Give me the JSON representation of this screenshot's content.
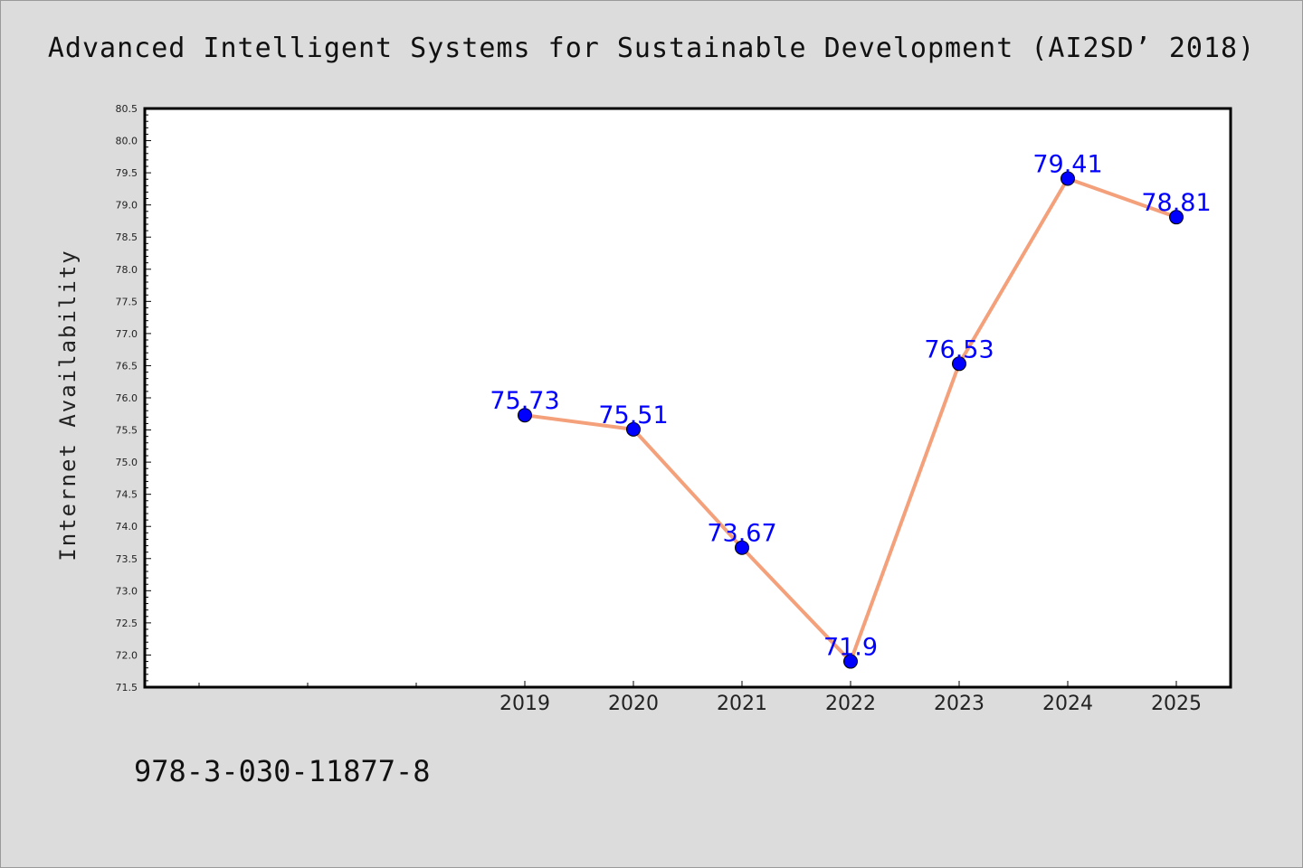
{
  "title": "Advanced Intelligent Systems for Sustainable Development (AI2SD’ 2018)",
  "footer_text": "978-3-030-11877-8",
  "colors": {
    "background": "#dcdcdc",
    "plot_background": "#ffffff",
    "line": "#f4a07a",
    "marker": "#0000ff",
    "data_label": "#0000ff"
  },
  "chart_data": {
    "type": "line",
    "title": "Advanced Intelligent Systems for Sustainable Development (AI2SD’ 2018)",
    "xlabel": "",
    "ylabel": "Internet Availability",
    "x": [
      "2019",
      "2020",
      "2021",
      "2022",
      "2023",
      "2024",
      "2025"
    ],
    "values": [
      75.73,
      75.51,
      73.67,
      71.9,
      76.53,
      79.41,
      78.81
    ],
    "data_labels": [
      "75.73",
      "75.51",
      "73.67",
      "71.9",
      "76.53",
      "79.41",
      "78.81"
    ],
    "ylim": [
      71.5,
      80.5
    ],
    "yticks": [
      "71.5",
      "72.0",
      "72.5",
      "73.0",
      "73.5",
      "74.0",
      "74.5",
      "75.0",
      "75.5",
      "76.0",
      "76.5",
      "77.0",
      "77.5",
      "78.0",
      "78.5",
      "79.0",
      "79.5",
      "80.0",
      "80.5"
    ],
    "x_positions": [
      3,
      4,
      5,
      6,
      7,
      8,
      9
    ],
    "xlim": [
      -0.5,
      9.5
    ],
    "empty_x_ticks": [
      0,
      1,
      2
    ],
    "grid": false,
    "legend": "none"
  }
}
